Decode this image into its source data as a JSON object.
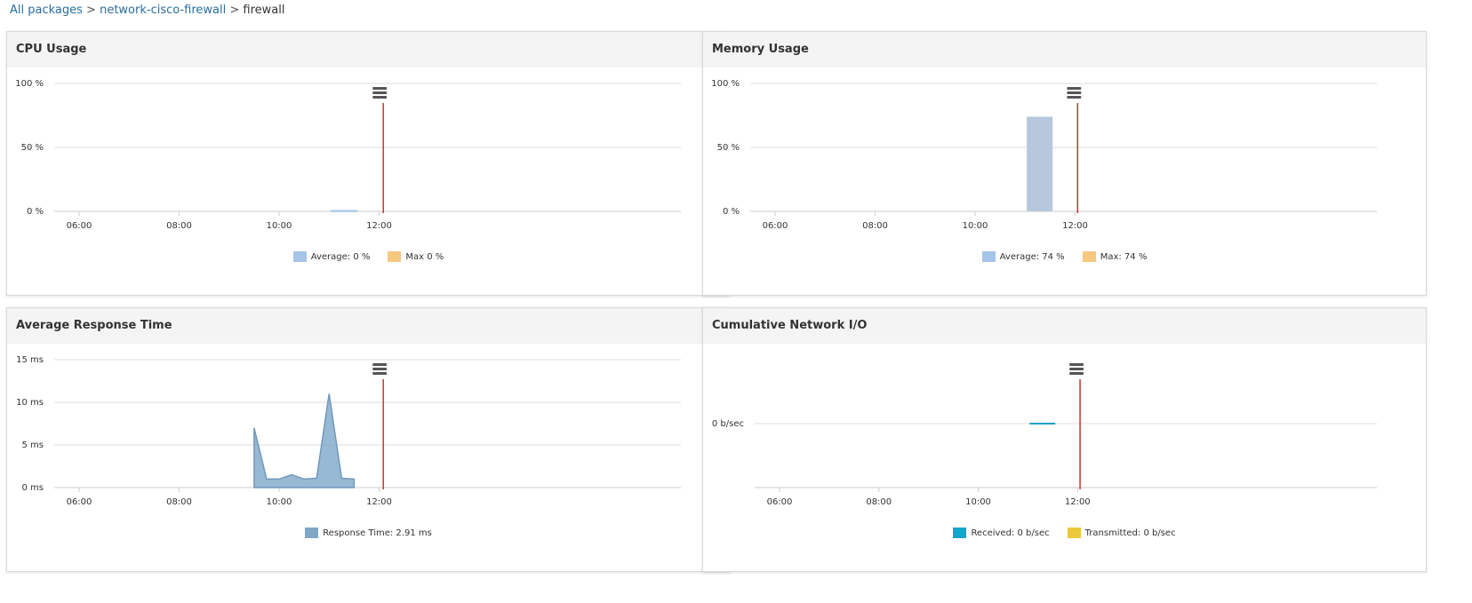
{
  "breadcrumb": {
    "all_packages": "All packages",
    "package": "network-cisco-firewall",
    "current": "firewall",
    "separator": ">"
  },
  "icons": {
    "menu": "hamburger-menu-icon"
  },
  "colors": {
    "now_line": "#c0392b",
    "grid": "#dddddd",
    "average": "#a6c4e8",
    "max": "#f7c880",
    "response_time": "#7ea7c8",
    "memory_bar": "#b7c8dd",
    "received": "#1aa3c9",
    "transmitted": "#ecc83c"
  },
  "panels": {
    "cpu": {
      "title": "CPU Usage",
      "legend": [
        "Average: 0 %",
        "Max 0 %"
      ],
      "chart_data": {
        "type": "area",
        "x_ticks": [
          "06:00",
          "08:00",
          "10:00",
          "12:00"
        ],
        "y_ticks": [
          "0 %",
          "50 %",
          "100 %"
        ],
        "ylim": [
          0,
          100
        ],
        "series": [
          {
            "name": "Average",
            "points": [
              [
                "11:03",
                0.5
              ],
              [
                "11:33",
                0.5
              ]
            ]
          },
          {
            "name": "Max",
            "points": [
              [
                "11:03",
                0.5
              ],
              [
                "11:33",
                0.5
              ]
            ]
          }
        ],
        "now_marker": "12:05"
      }
    },
    "memory": {
      "title": "Memory Usage",
      "legend": [
        "Average: 74 %",
        "Max: 74 %"
      ],
      "chart_data": {
        "type": "bar",
        "x_ticks": [
          "06:00",
          "08:00",
          "10:00",
          "12:00"
        ],
        "y_ticks": [
          "0 %",
          "50 %",
          "100 %"
        ],
        "ylim": [
          0,
          100
        ],
        "bars": [
          {
            "start": "11:02",
            "end": "11:33",
            "value": 74
          }
        ],
        "now_marker": "12:03"
      }
    },
    "response": {
      "title": "Average Response Time",
      "legend": [
        "Response Time: 2.91 ms"
      ],
      "chart_data": {
        "type": "area",
        "x_ticks": [
          "06:00",
          "08:00",
          "10:00",
          "12:00"
        ],
        "y_ticks": [
          "0 ms",
          "5 ms",
          "10 ms",
          "15 ms"
        ],
        "ylim": [
          0,
          15
        ],
        "series": [
          {
            "name": "Response Time",
            "points": [
              [
                "09:30",
                7.0
              ],
              [
                "09:45",
                1.0
              ],
              [
                "10:00",
                1.0
              ],
              [
                "10:15",
                1.5
              ],
              [
                "10:30",
                1.0
              ],
              [
                "10:45",
                1.1
              ],
              [
                "11:00",
                11.0
              ],
              [
                "11:15",
                1.1
              ],
              [
                "11:30",
                1.0
              ]
            ]
          }
        ],
        "now_marker": "12:05"
      }
    },
    "network": {
      "title": "Cumulative Network I/O",
      "legend": [
        "Received: 0 b/sec",
        "Transmitted: 0 b/sec"
      ],
      "chart_data": {
        "type": "line",
        "x_ticks": [
          "06:00",
          "08:00",
          "10:00",
          "12:00"
        ],
        "y_ticks": [
          "0 b/sec"
        ],
        "series": [
          {
            "name": "Received",
            "points": [
              [
                "11:02",
                0
              ],
              [
                "11:33",
                0
              ]
            ]
          }
        ],
        "now_marker": "12:03"
      }
    }
  }
}
